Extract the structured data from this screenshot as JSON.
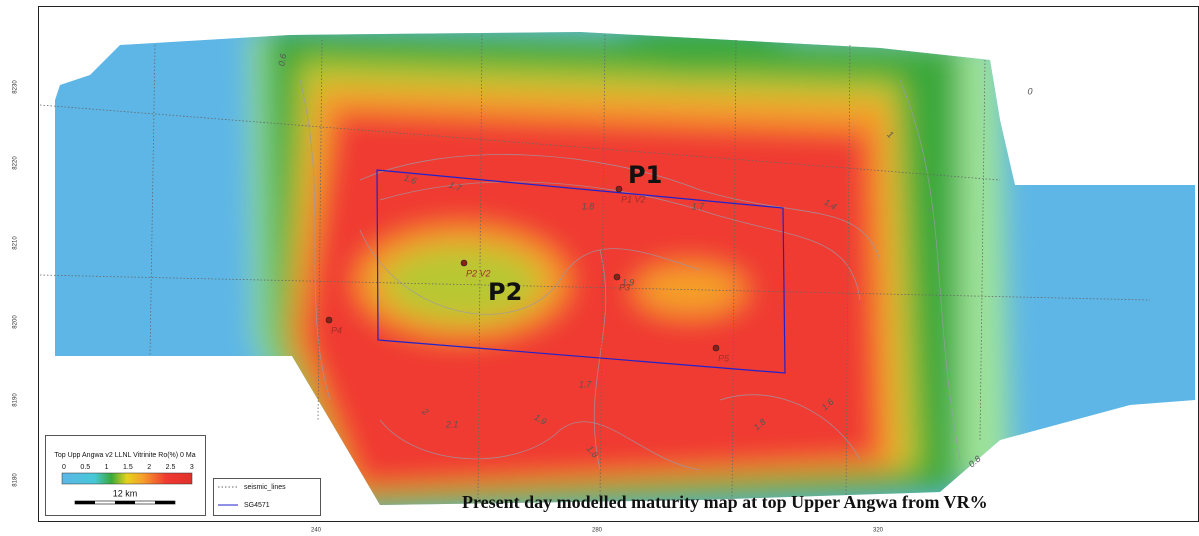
{
  "axes": {
    "y_labels": [
      "8230",
      "8220",
      "8210",
      "8200",
      "8190",
      "8180"
    ],
    "x_labels": [
      "240",
      "280",
      "320"
    ]
  },
  "wells": [
    {
      "label": "P1 V2"
    },
    {
      "label": "P2 V2"
    },
    {
      "label": "P3"
    },
    {
      "label": "P4"
    },
    {
      "label": "P5"
    }
  ],
  "callouts": [
    "P1",
    "P2"
  ],
  "contour_labels": [
    "0.6",
    "1.6",
    "1.7",
    "1.8",
    "1.7",
    "1.4",
    "1",
    "1.9",
    "2",
    "2.1",
    "1.9",
    "1.8",
    "1.7",
    "1.8",
    "1.6",
    "0.8",
    "0"
  ],
  "legend": {
    "title": "Top Upp Angwa v2 LLNL Vitrinite Ro(%) 0 Ma",
    "scale_ticks": [
      "0",
      "0.5",
      "1",
      "1.5",
      "2",
      "2.5",
      "3"
    ],
    "scale_bar": "12 km",
    "items": [
      "seismic_lines",
      "SG4571"
    ]
  },
  "caption": "Present day modelled maturity map at top Upper Angwa from VR%"
}
